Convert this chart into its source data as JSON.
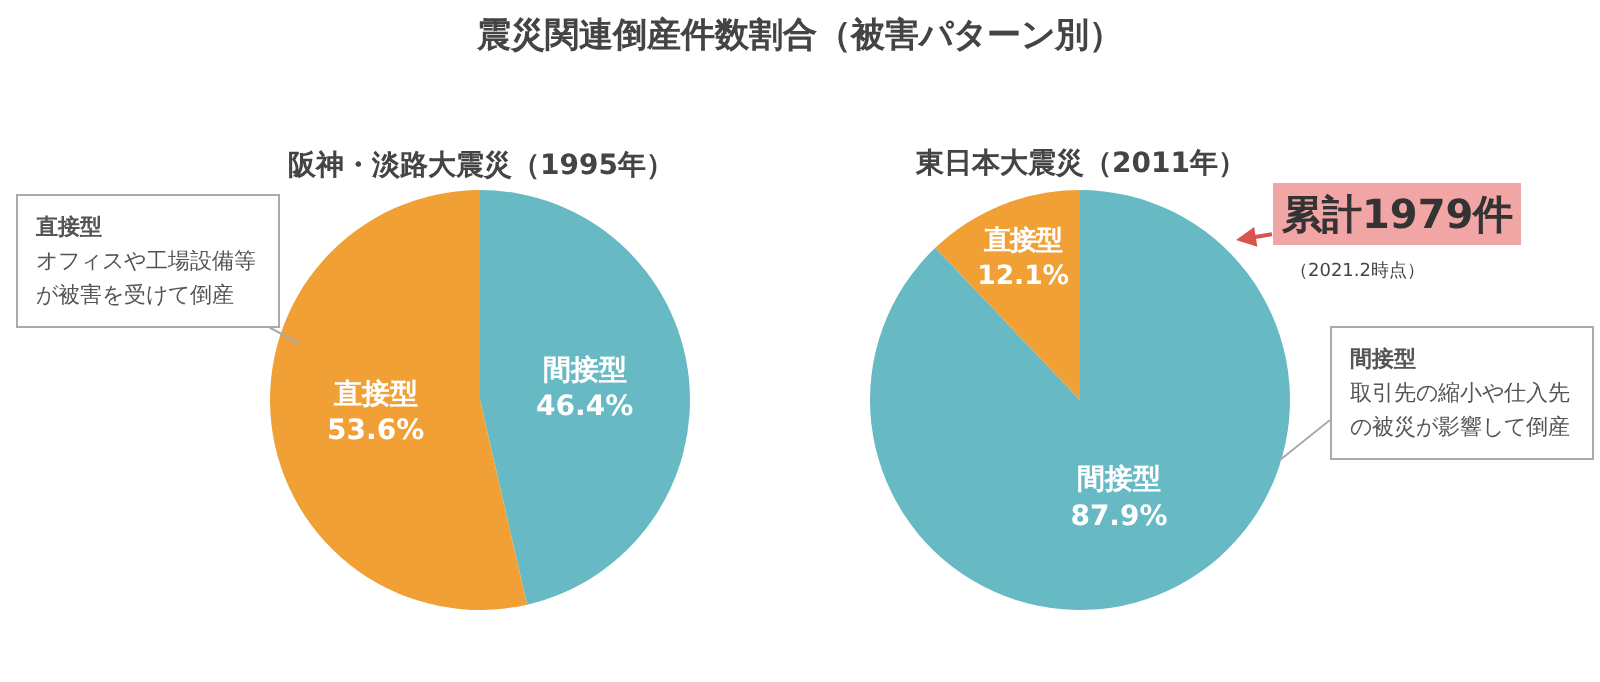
{
  "chart_data": [
    {
      "type": "pie",
      "title": "阪神・淡路大震災（1995年）",
      "categories": [
        "間接型",
        "直接型"
      ],
      "values": [
        46.4,
        53.6
      ],
      "value_labels": [
        "46.4%",
        "53.6%"
      ],
      "colors": [
        "#67b9c4",
        "#f0a035"
      ],
      "annotations": [
        "震災関連倒産件数割合（被害パターン別）",
        "直接型",
        "オフィスや工場設備等が被害を受けて倒産"
      ]
    },
    {
      "type": "pie",
      "title": "東日本大震災（2011年）",
      "categories": [
        "間接型",
        "直接型"
      ],
      "values": [
        87.9,
        12.1
      ],
      "value_labels": [
        "87.9%",
        "12.1%"
      ],
      "colors": [
        "#67b9c4",
        "#f0a035"
      ],
      "annotations": [
        "累計1979件",
        "（2021.2時点）",
        "間接型",
        "取引先の縮小や仕入先の被災が影響して倒産"
      ]
    }
  ]
}
